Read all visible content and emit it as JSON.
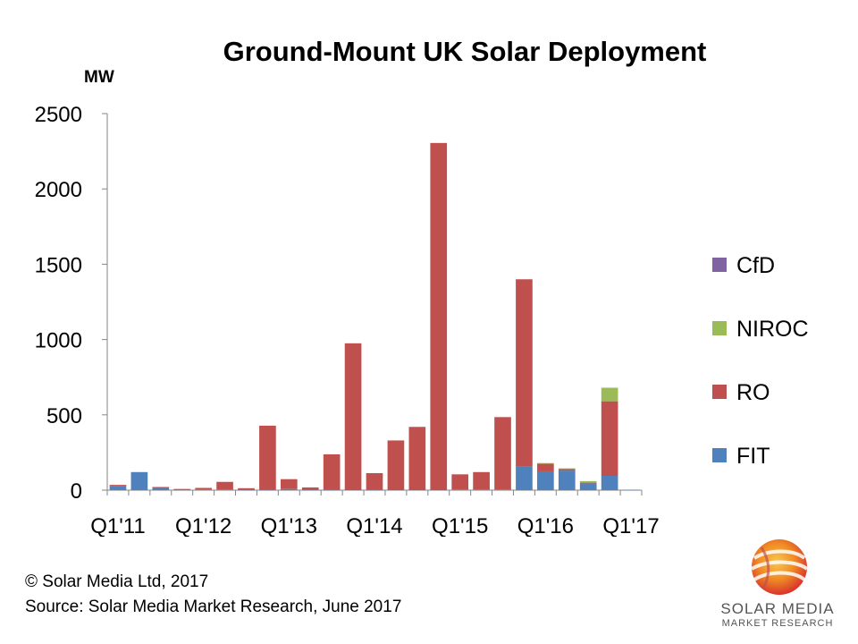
{
  "chart_data": {
    "type": "bar",
    "stacked": true,
    "title": "Ground-Mount UK Solar Deployment",
    "ylabel": "MW",
    "xlabel": "",
    "ylim": [
      0,
      2500
    ],
    "yticks": [
      0,
      500,
      1000,
      1500,
      2000,
      2500
    ],
    "grid": false,
    "legend_position": "right",
    "x_tick_labels": [
      "Q1'11",
      "Q1'12",
      "Q1'13",
      "Q1'14",
      "Q1'15",
      "Q1'16",
      "Q1'17"
    ],
    "x_tick_every": 4,
    "categories": [
      "Q1'11",
      "Q2'11",
      "Q3'11",
      "Q4'11",
      "Q1'12",
      "Q2'12",
      "Q3'12",
      "Q4'12",
      "Q1'13",
      "Q2'13",
      "Q3'13",
      "Q4'13",
      "Q1'14",
      "Q2'14",
      "Q3'14",
      "Q4'14",
      "Q1'15",
      "Q2'15",
      "Q3'15",
      "Q4'15",
      "Q1'16",
      "Q2'16",
      "Q3'16",
      "Q4'16",
      "Q1'17"
    ],
    "series": [
      {
        "name": "FIT",
        "color": "#4F81BD",
        "values": [
          25,
          120,
          18,
          5,
          5,
          5,
          3,
          3,
          8,
          3,
          3,
          0,
          3,
          0,
          0,
          0,
          5,
          5,
          5,
          160,
          125,
          130,
          45,
          95,
          3
        ]
      },
      {
        "name": "RO",
        "color": "#C0504D",
        "values": [
          10,
          0,
          3,
          3,
          10,
          50,
          10,
          425,
          65,
          15,
          235,
          975,
          110,
          330,
          420,
          2305,
          100,
          115,
          480,
          1240,
          50,
          10,
          5,
          495,
          0
        ]
      },
      {
        "name": "NIROC",
        "color": "#9BBB59",
        "values": [
          0,
          0,
          0,
          0,
          0,
          0,
          0,
          0,
          0,
          0,
          0,
          0,
          0,
          0,
          0,
          0,
          0,
          0,
          0,
          0,
          5,
          5,
          10,
          90,
          0
        ]
      },
      {
        "name": "CfD",
        "color": "#8064A2",
        "values": [
          0,
          0,
          0,
          0,
          0,
          0,
          0,
          0,
          0,
          0,
          0,
          0,
          0,
          0,
          0,
          0,
          0,
          0,
          0,
          0,
          0,
          0,
          0,
          0,
          0
        ]
      }
    ]
  },
  "footer": {
    "copyright": "© Solar Media Ltd, 2017",
    "source": "Source: Solar Media Market Research, June 2017"
  },
  "logo": {
    "name": "SOLAR MEDIA",
    "sub": "MARKET RESEARCH"
  }
}
